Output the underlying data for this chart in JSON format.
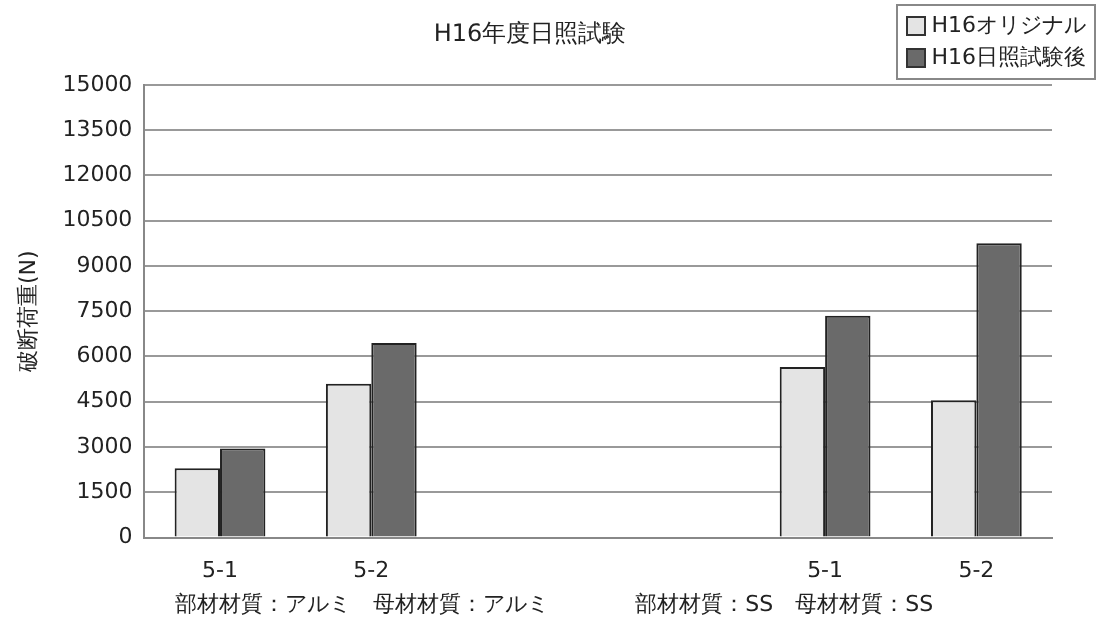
{
  "chart_data": {
    "type": "bar",
    "title": "H16年度日照試験",
    "ylabel": "破断荷重(N)",
    "categories": [
      "5-1",
      "5-2",
      null,
      null,
      "5-1",
      "5-2"
    ],
    "series": [
      {
        "name": "H16オリジナル",
        "color": "#e4e4e4",
        "values": [
          2300,
          5100,
          null,
          null,
          5650,
          4550
        ]
      },
      {
        "name": "H16日照試験後",
        "color": "#6a6a6a",
        "values": [
          2950,
          6450,
          null,
          null,
          7350,
          9750
        ]
      }
    ],
    "ylim": [
      0,
      15000
    ],
    "yticks": [
      0,
      1500,
      3000,
      4500,
      6000,
      7500,
      9000,
      10500,
      12000,
      13500,
      15000
    ],
    "grid": "y",
    "legend": "top right",
    "annotations": [
      "部材材質：アルミ　母材材質：アルミ",
      "部材材質：SS　母材材質：SS"
    ]
  }
}
